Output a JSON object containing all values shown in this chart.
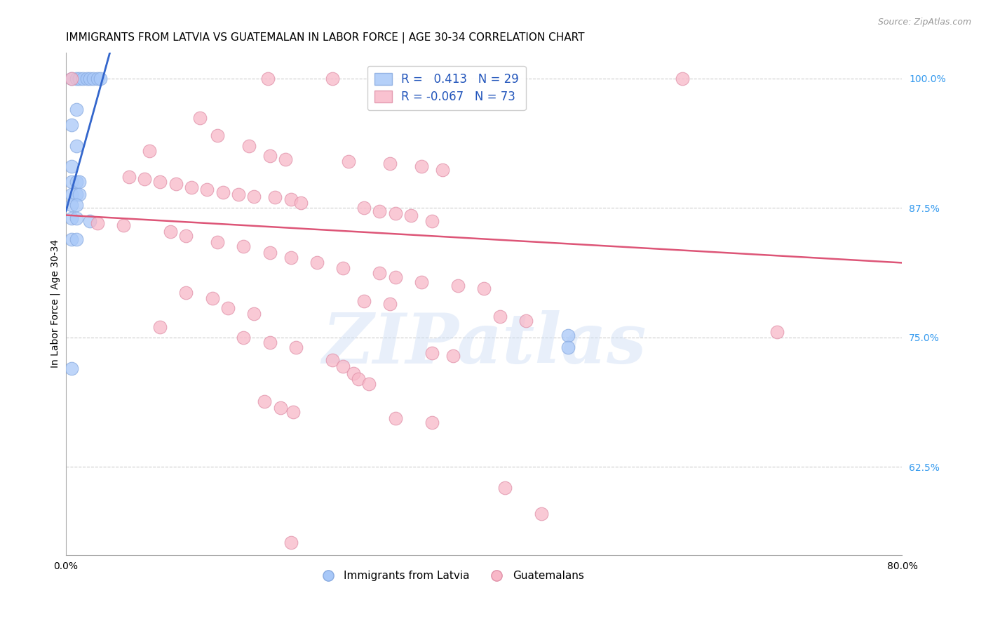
{
  "title": "IMMIGRANTS FROM LATVIA VS GUATEMALAN IN LABOR FORCE | AGE 30-34 CORRELATION CHART",
  "source": "Source: ZipAtlas.com",
  "ylabel": "In Labor Force | Age 30-34",
  "xlim": [
    0.0,
    0.8
  ],
  "ylim": [
    0.54,
    1.025
  ],
  "xticks": [
    0.0,
    0.1,
    0.2,
    0.3,
    0.4,
    0.5,
    0.6,
    0.7,
    0.8
  ],
  "xticklabels": [
    "0.0%",
    "",
    "",
    "",
    "",
    "",
    "",
    "",
    "80.0%"
  ],
  "yticks_right": [
    0.625,
    0.75,
    0.875,
    1.0
  ],
  "yticklabels_right": [
    "62.5%",
    "75.0%",
    "87.5%",
    "100.0%"
  ],
  "legend_series": [
    "Immigrants from Latvia",
    "Guatemalans"
  ],
  "blue_scatter": [
    [
      0.005,
      1.0
    ],
    [
      0.01,
      1.0
    ],
    [
      0.013,
      1.0
    ],
    [
      0.016,
      1.0
    ],
    [
      0.02,
      1.0
    ],
    [
      0.023,
      1.0
    ],
    [
      0.026,
      1.0
    ],
    [
      0.03,
      1.0
    ],
    [
      0.033,
      1.0
    ],
    [
      0.01,
      0.97
    ],
    [
      0.005,
      0.955
    ],
    [
      0.01,
      0.935
    ],
    [
      0.005,
      0.915
    ],
    [
      0.005,
      0.9
    ],
    [
      0.01,
      0.9
    ],
    [
      0.013,
      0.9
    ],
    [
      0.005,
      0.888
    ],
    [
      0.01,
      0.888
    ],
    [
      0.013,
      0.888
    ],
    [
      0.005,
      0.878
    ],
    [
      0.01,
      0.878
    ],
    [
      0.005,
      0.865
    ],
    [
      0.01,
      0.865
    ],
    [
      0.023,
      0.862
    ],
    [
      0.005,
      0.845
    ],
    [
      0.01,
      0.845
    ],
    [
      0.005,
      0.72
    ],
    [
      0.48,
      0.752
    ],
    [
      0.48,
      0.74
    ]
  ],
  "pink_scatter": [
    [
      0.005,
      1.0
    ],
    [
      0.193,
      1.0
    ],
    [
      0.255,
      1.0
    ],
    [
      0.59,
      1.0
    ],
    [
      0.128,
      0.962
    ],
    [
      0.145,
      0.945
    ],
    [
      0.175,
      0.935
    ],
    [
      0.08,
      0.93
    ],
    [
      0.195,
      0.925
    ],
    [
      0.21,
      0.922
    ],
    [
      0.27,
      0.92
    ],
    [
      0.31,
      0.918
    ],
    [
      0.34,
      0.915
    ],
    [
      0.36,
      0.912
    ],
    [
      0.06,
      0.905
    ],
    [
      0.075,
      0.903
    ],
    [
      0.09,
      0.9
    ],
    [
      0.105,
      0.898
    ],
    [
      0.12,
      0.895
    ],
    [
      0.135,
      0.893
    ],
    [
      0.15,
      0.89
    ],
    [
      0.165,
      0.888
    ],
    [
      0.18,
      0.886
    ],
    [
      0.2,
      0.885
    ],
    [
      0.215,
      0.883
    ],
    [
      0.225,
      0.88
    ],
    [
      0.285,
      0.875
    ],
    [
      0.3,
      0.872
    ],
    [
      0.315,
      0.87
    ],
    [
      0.33,
      0.868
    ],
    [
      0.35,
      0.862
    ],
    [
      0.03,
      0.86
    ],
    [
      0.055,
      0.858
    ],
    [
      0.1,
      0.852
    ],
    [
      0.115,
      0.848
    ],
    [
      0.145,
      0.842
    ],
    [
      0.17,
      0.838
    ],
    [
      0.195,
      0.832
    ],
    [
      0.215,
      0.827
    ],
    [
      0.24,
      0.822
    ],
    [
      0.265,
      0.817
    ],
    [
      0.3,
      0.812
    ],
    [
      0.315,
      0.808
    ],
    [
      0.34,
      0.803
    ],
    [
      0.375,
      0.8
    ],
    [
      0.4,
      0.797
    ],
    [
      0.115,
      0.793
    ],
    [
      0.14,
      0.788
    ],
    [
      0.285,
      0.785
    ],
    [
      0.31,
      0.782
    ],
    [
      0.155,
      0.778
    ],
    [
      0.18,
      0.773
    ],
    [
      0.415,
      0.77
    ],
    [
      0.44,
      0.766
    ],
    [
      0.09,
      0.76
    ],
    [
      0.68,
      0.755
    ],
    [
      0.17,
      0.75
    ],
    [
      0.195,
      0.745
    ],
    [
      0.22,
      0.74
    ],
    [
      0.35,
      0.735
    ],
    [
      0.37,
      0.732
    ],
    [
      0.255,
      0.728
    ],
    [
      0.265,
      0.722
    ],
    [
      0.275,
      0.715
    ],
    [
      0.28,
      0.71
    ],
    [
      0.29,
      0.705
    ],
    [
      0.19,
      0.688
    ],
    [
      0.205,
      0.682
    ],
    [
      0.217,
      0.678
    ],
    [
      0.315,
      0.672
    ],
    [
      0.35,
      0.668
    ],
    [
      0.42,
      0.605
    ],
    [
      0.455,
      0.58
    ],
    [
      0.215,
      0.552
    ]
  ],
  "blue_line_x": [
    0.0,
    0.042
  ],
  "blue_line_y": [
    0.872,
    1.025
  ],
  "pink_line_x": [
    0.0,
    0.8
  ],
  "pink_line_y": [
    0.868,
    0.822
  ],
  "background_color": "#ffffff",
  "grid_color": "#cccccc",
  "blue_color": "#a8c8f8",
  "pink_color": "#f8b8c8",
  "blue_edge_color": "#88aae0",
  "pink_edge_color": "#e090a8",
  "blue_line_color": "#3366cc",
  "pink_line_color": "#dd5577",
  "watermark_text": "ZIPatlas",
  "title_fontsize": 11,
  "axis_label_fontsize": 10,
  "tick_fontsize": 10,
  "source_fontsize": 9
}
